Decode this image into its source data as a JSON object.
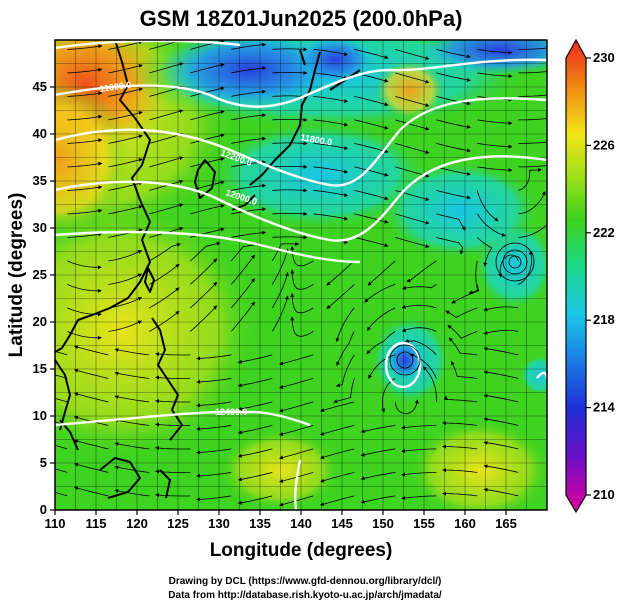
{
  "title": "GSM 18Z01Jun2025 (200.0hPa)",
  "xlabel": "Longitude (degrees)",
  "ylabel": "Latitude (degrees)",
  "x_ticks": [
    "110",
    "115",
    "120",
    "125",
    "130",
    "135",
    "140",
    "145",
    "150",
    "155",
    "160",
    "165"
  ],
  "y_ticks": [
    "0",
    "5",
    "10",
    "15",
    "20",
    "25",
    "30",
    "35",
    "40",
    "45"
  ],
  "colorbar": {
    "ticks": [
      "210",
      "214",
      "218",
      "222",
      "226",
      "230"
    ]
  },
  "contour_labels": [
    "12200.0",
    "12000.0",
    "11800.0",
    "11600.0",
    "12400.0"
  ],
  "credits": {
    "line1": "Drawing by DCL (https://www.gfd-dennou.org/library/dcl/)",
    "line2": "Data from http://database.rish.kyoto-u.ac.jp/arch/jmadata/"
  },
  "colors": {
    "scale_low": "#e2009d",
    "scale_blue": "#1c2fd6",
    "scale_cyan": "#1ac8e8",
    "scale_green": "#3cd21c",
    "scale_yellow": "#f2e516",
    "scale_orange": "#f08a12",
    "scale_high": "#ea2a1e",
    "coast": "#000000",
    "contour": "#ffffff"
  },
  "chart_data": {
    "type": "heatmap",
    "title": "GSM 18Z01Jun2025 (200.0hPa)",
    "xlabel": "Longitude (degrees)",
    "ylabel": "Latitude (degrees)",
    "xlim": [
      110,
      170
    ],
    "ylim": [
      0,
      50
    ],
    "color_range": [
      210,
      230
    ],
    "colorbar_ticks": [
      210,
      214,
      218,
      222,
      226,
      230
    ],
    "grid": true,
    "overlays": [
      "streamlines",
      "geopotential height contours",
      "coastlines"
    ],
    "contour_levels": [
      11600,
      11800,
      12000,
      12200,
      12400
    ]
  }
}
